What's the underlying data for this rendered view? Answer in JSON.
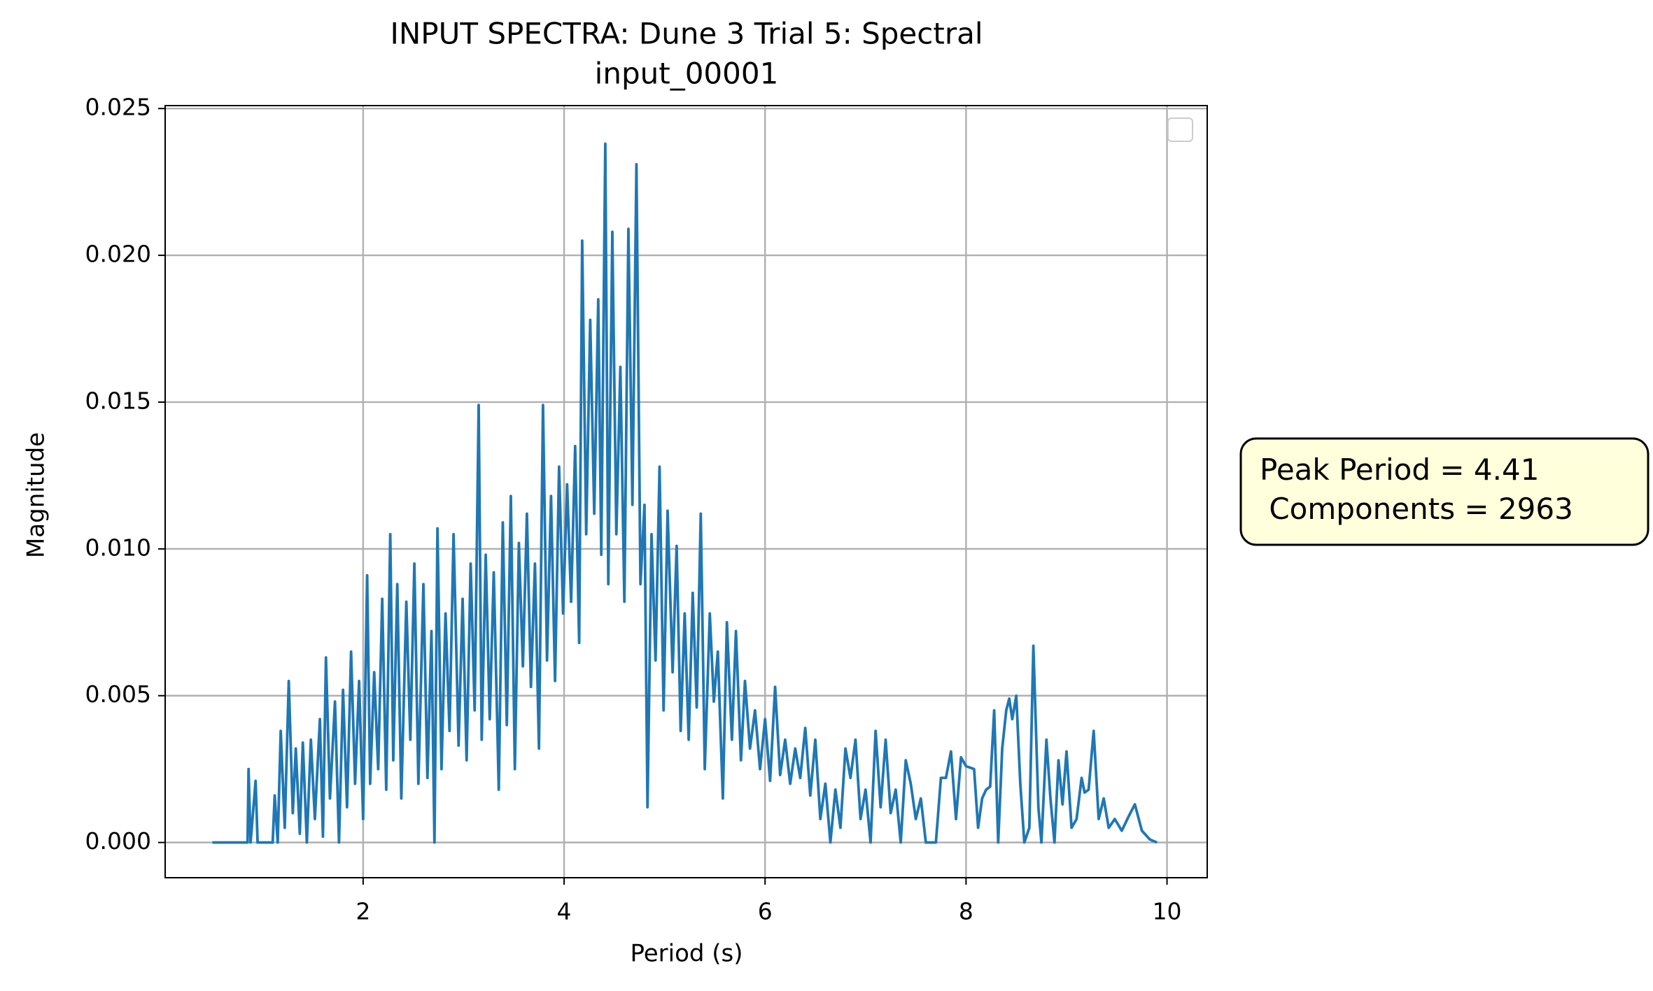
{
  "chart_data": {
    "type": "line",
    "title": "INPUT SPECTRA: Dune 3 Trial 5: Spectral",
    "subtitle": "input_00001",
    "x_label": "Period (s)",
    "y_label": "Magnitude",
    "annotation": [
      "Peak Period = 4.41",
      " Components = 2963"
    ],
    "xlim": [
      0.03,
      10.4
    ],
    "ylim": [
      -0.0012,
      0.0251
    ],
    "xticks": [
      2,
      4,
      6,
      8,
      10
    ],
    "yticks": [
      {
        "value": 0,
        "label": "0.000"
      },
      {
        "value": 0.005,
        "label": "0.005"
      },
      {
        "value": 0.01,
        "label": "0.010"
      },
      {
        "value": 0.015,
        "label": "0.015"
      },
      {
        "value": 0.02,
        "label": "0.020"
      },
      {
        "value": 0.025,
        "label": "0.025"
      }
    ],
    "grid": true,
    "legend": "upper right",
    "x": [
      0.5,
      0.85,
      0.86,
      0.88,
      0.93,
      0.95,
      1.1,
      1.12,
      1.15,
      1.18,
      1.22,
      1.26,
      1.3,
      1.33,
      1.37,
      1.4,
      1.44,
      1.48,
      1.52,
      1.57,
      1.6,
      1.63,
      1.67,
      1.72,
      1.76,
      1.8,
      1.84,
      1.88,
      1.92,
      1.96,
      2.0,
      2.04,
      2.07,
      2.11,
      2.15,
      2.19,
      2.23,
      2.27,
      2.3,
      2.34,
      2.38,
      2.43,
      2.47,
      2.51,
      2.55,
      2.6,
      2.64,
      2.68,
      2.71,
      2.74,
      2.78,
      2.82,
      2.86,
      2.9,
      2.95,
      2.99,
      3.03,
      3.07,
      3.11,
      3.15,
      3.18,
      3.22,
      3.26,
      3.3,
      3.35,
      3.39,
      3.43,
      3.47,
      3.51,
      3.55,
      3.59,
      3.63,
      3.67,
      3.71,
      3.75,
      3.79,
      3.83,
      3.87,
      3.91,
      3.95,
      3.99,
      4.03,
      4.07,
      4.11,
      4.15,
      4.18,
      4.22,
      4.26,
      4.3,
      4.34,
      4.37,
      4.41,
      4.44,
      4.48,
      4.52,
      4.56,
      4.6,
      4.64,
      4.68,
      4.72,
      4.76,
      4.8,
      4.83,
      4.87,
      4.91,
      4.95,
      4.99,
      5.03,
      5.08,
      5.12,
      5.16,
      5.2,
      5.24,
      5.28,
      5.32,
      5.36,
      5.4,
      5.45,
      5.49,
      5.53,
      5.58,
      5.62,
      5.67,
      5.71,
      5.76,
      5.8,
      5.85,
      5.9,
      5.95,
      6.0,
      6.05,
      6.1,
      6.15,
      6.2,
      6.25,
      6.3,
      6.35,
      6.4,
      6.45,
      6.5,
      6.55,
      6.6,
      6.65,
      6.7,
      6.75,
      6.8,
      6.85,
      6.9,
      6.95,
      7.0,
      7.05,
      7.1,
      7.15,
      7.2,
      7.25,
      7.3,
      7.35,
      7.4,
      7.45,
      7.5,
      7.55,
      7.6,
      7.7,
      7.75,
      7.8,
      7.85,
      7.9,
      7.95,
      8.0,
      8.08,
      8.12,
      8.16,
      8.2,
      8.24,
      8.28,
      8.32,
      8.36,
      8.4,
      8.43,
      8.46,
      8.5,
      8.54,
      8.58,
      8.63,
      8.67,
      8.72,
      8.75,
      8.8,
      8.84,
      8.88,
      8.92,
      8.96,
      9.0,
      9.05,
      9.1,
      9.15,
      9.18,
      9.22,
      9.27,
      9.32,
      9.37,
      9.42,
      9.48,
      9.55,
      9.62,
      9.68,
      9.75,
      9.83,
      9.9
    ],
    "series": [
      {
        "color": "#1f77b4",
        "values": [
          0,
          0,
          0.0025,
          0,
          0.0021,
          0,
          0,
          0.0016,
          0,
          0.0038,
          0.0005,
          0.0055,
          0.001,
          0.0032,
          0.0003,
          0.0034,
          0,
          0.0035,
          0.0008,
          0.0042,
          0.0002,
          0.0063,
          0.0015,
          0.0048,
          0,
          0.0052,
          0.0012,
          0.0065,
          0.002,
          0.0055,
          0.0008,
          0.0091,
          0.002,
          0.0058,
          0.0025,
          0.0083,
          0.0018,
          0.0105,
          0.0028,
          0.0088,
          0.0015,
          0.0082,
          0.0035,
          0.0095,
          0.002,
          0.0088,
          0.0022,
          0.0072,
          0,
          0.0107,
          0.0025,
          0.0078,
          0.0038,
          0.0105,
          0.0033,
          0.0083,
          0.0028,
          0.0095,
          0.0045,
          0.0149,
          0.0035,
          0.0098,
          0.0042,
          0.0092,
          0.0018,
          0.0109,
          0.004,
          0.0118,
          0.0025,
          0.0102,
          0.006,
          0.0112,
          0.0053,
          0.0095,
          0.0032,
          0.0149,
          0.0062,
          0.0118,
          0.0055,
          0.0128,
          0.0078,
          0.0122,
          0.0082,
          0.0135,
          0.0068,
          0.0205,
          0.0105,
          0.0178,
          0.0112,
          0.0185,
          0.0098,
          0.0238,
          0.0088,
          0.0208,
          0.0105,
          0.0162,
          0.0082,
          0.0209,
          0.0115,
          0.0231,
          0.0088,
          0.0115,
          0.0012,
          0.0105,
          0.0062,
          0.0128,
          0.0045,
          0.0113,
          0.0058,
          0.0101,
          0.0038,
          0.0078,
          0.0035,
          0.0085,
          0.0046,
          0.0112,
          0.0025,
          0.0078,
          0.0048,
          0.0065,
          0.0015,
          0.0075,
          0.0035,
          0.0072,
          0.0028,
          0.0055,
          0.0032,
          0.0045,
          0.0025,
          0.0042,
          0.0021,
          0.0053,
          0.0023,
          0.0035,
          0.002,
          0.0032,
          0.0022,
          0.0039,
          0.0016,
          0.0035,
          0.0008,
          0.002,
          0,
          0.0018,
          0.0005,
          0.0032,
          0.0022,
          0.0035,
          0.0008,
          0.0018,
          0,
          0.0038,
          0.0012,
          0.0035,
          0.001,
          0.0018,
          0,
          0.0028,
          0.002,
          0.0008,
          0.0015,
          0,
          0,
          0.0022,
          0.0022,
          0.0031,
          0.0008,
          0.0029,
          0.0026,
          0.0025,
          0.0005,
          0.0015,
          0.0018,
          0.0019,
          0.0045,
          0,
          0.0032,
          0.0045,
          0.0049,
          0.0042,
          0.005,
          0.002,
          0,
          0.0005,
          0.0067,
          0.0012,
          0,
          0.0035,
          0.0015,
          0,
          0.0028,
          0.0013,
          0.0031,
          0.0005,
          0.0008,
          0.0022,
          0.0017,
          0.0018,
          0.0038,
          0.0008,
          0.0015,
          0.0005,
          0.0008,
          0.0004,
          0.0009,
          0.0013,
          0.0004,
          0.0001,
          0
        ]
      }
    ]
  }
}
